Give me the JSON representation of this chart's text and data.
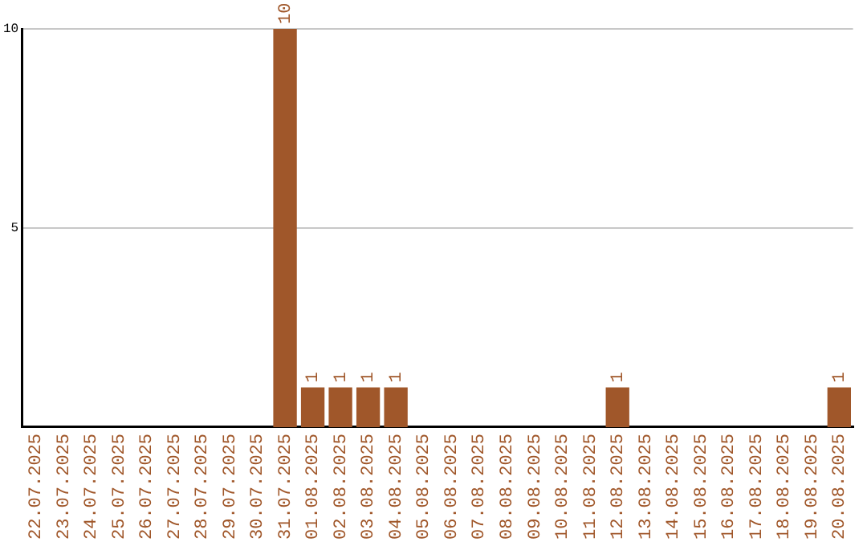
{
  "chart_data": {
    "type": "bar",
    "categories": [
      "22.07.2025",
      "23.07.2025",
      "24.07.2025",
      "25.07.2025",
      "26.07.2025",
      "27.07.2025",
      "28.07.2025",
      "29.07.2025",
      "30.07.2025",
      "31.07.2025",
      "01.08.2025",
      "02.08.2025",
      "03.08.2025",
      "04.08.2025",
      "05.08.2025",
      "06.08.2025",
      "07.08.2025",
      "08.08.2025",
      "09.08.2025",
      "10.08.2025",
      "11.08.2025",
      "12.08.2025",
      "13.08.2025",
      "14.08.2025",
      "15.08.2025",
      "16.08.2025",
      "17.08.2025",
      "18.08.2025",
      "19.08.2025",
      "20.08.2025"
    ],
    "values": [
      0,
      0,
      0,
      0,
      0,
      0,
      0,
      0,
      0,
      10,
      1,
      1,
      1,
      1,
      0,
      0,
      0,
      0,
      0,
      0,
      0,
      1,
      0,
      0,
      0,
      0,
      0,
      0,
      0,
      1
    ],
    "value_labels": [
      null,
      null,
      null,
      null,
      null,
      null,
      null,
      null,
      null,
      "10",
      "1",
      "1",
      "1",
      "1",
      null,
      null,
      null,
      null,
      null,
      null,
      null,
      "1",
      null,
      null,
      null,
      null,
      null,
      null,
      null,
      "1"
    ],
    "color": "#a0572a",
    "ylim": [
      0,
      10
    ],
    "yticks": [
      5,
      10
    ],
    "grid": "y",
    "legend": false
  }
}
